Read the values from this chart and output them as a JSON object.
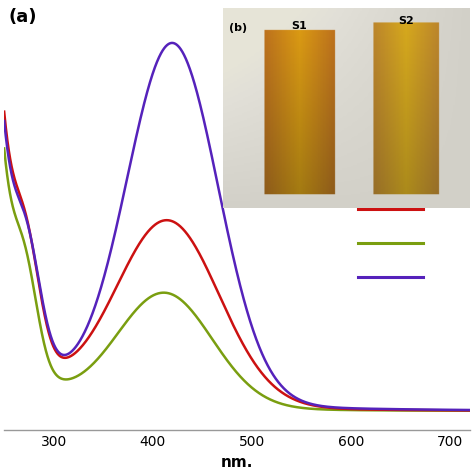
{
  "title_a": "(a)",
  "xlabel": "nm.",
  "xlim": [
    250,
    720
  ],
  "ylim": [
    -0.05,
    1.05
  ],
  "xticks": [
    300,
    400,
    500,
    600,
    700
  ],
  "colors": {
    "red": "#cc1111",
    "green": "#7a9e10",
    "purple": "#5522bb"
  },
  "background_color": "#ffffff",
  "inset_label": "(b)",
  "inset_s1": "S1",
  "inset_s2": "S2",
  "legend_colors": [
    "#cc1111",
    "#7a9e10",
    "#5522bb"
  ]
}
